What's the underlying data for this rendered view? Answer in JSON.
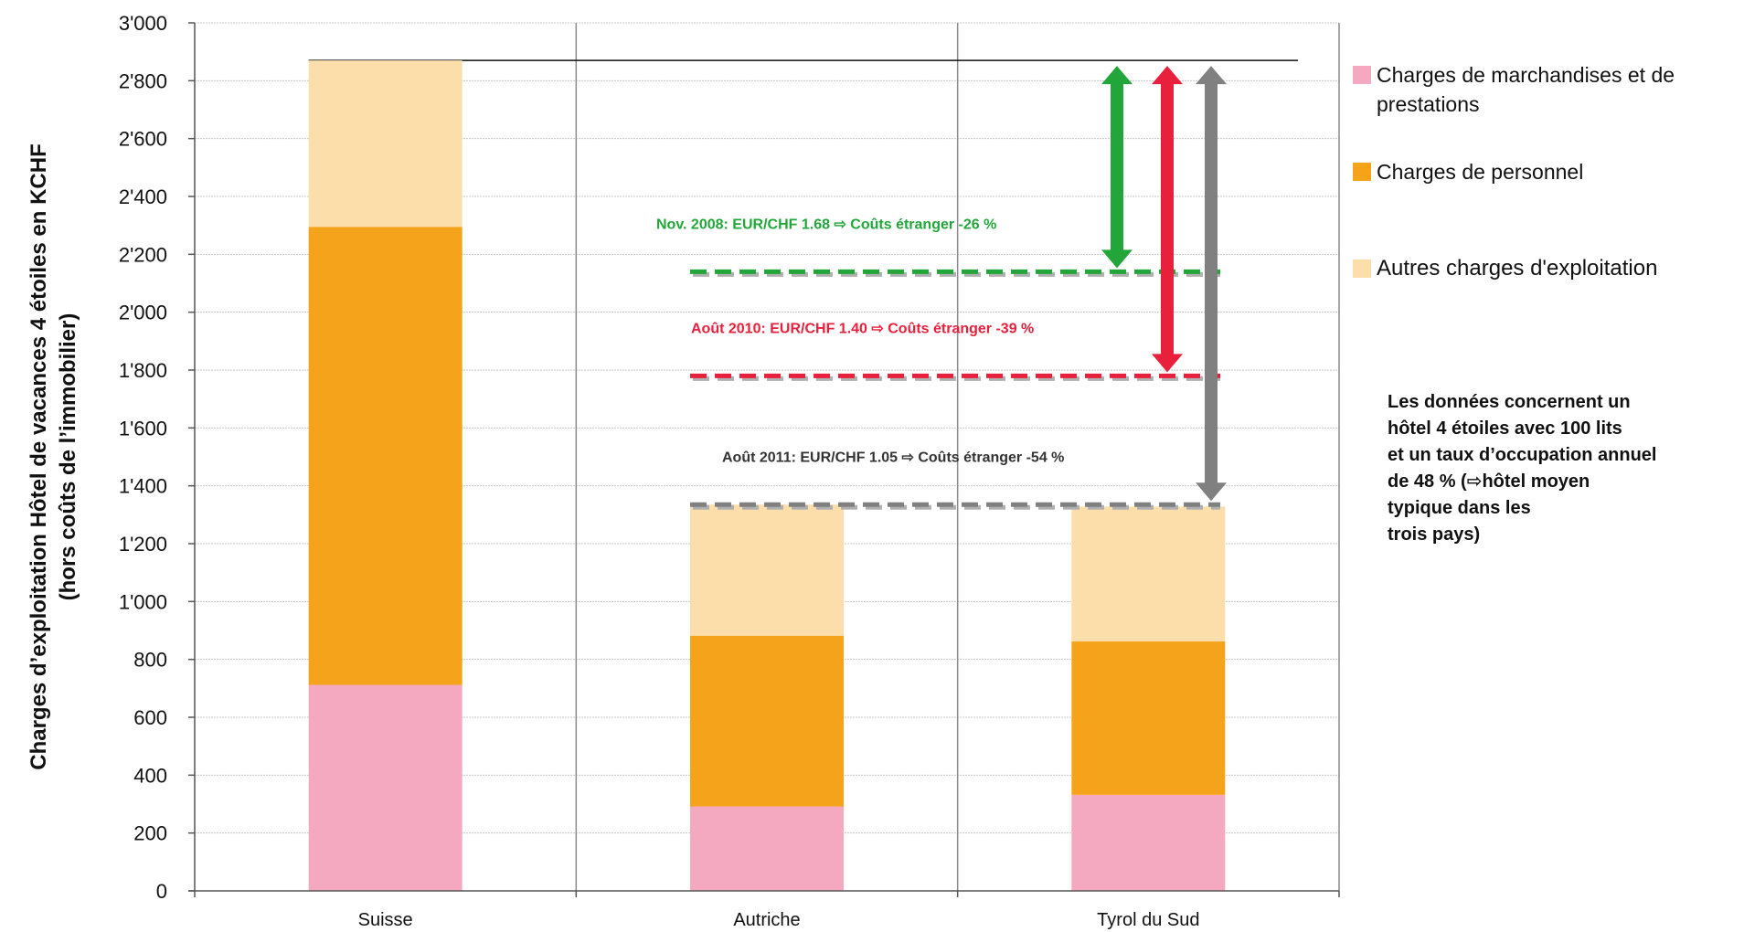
{
  "chart_data": {
    "type": "bar",
    "stacked": true,
    "categories": [
      "Suisse",
      "Autriche",
      "Tyrol du Sud"
    ],
    "series": [
      {
        "name": "Charges de marchandises et de prestations",
        "values": [
          712,
          292,
          332
        ],
        "color": "#f4a9c0"
      },
      {
        "name": "Charges de personnel",
        "values": [
          1583,
          590,
          530
        ],
        "color": "#f5a31a"
      },
      {
        "name": "Autres charges d'exploitation",
        "values": [
          575,
          453,
          466
        ],
        "color": "#fbdeaa"
      }
    ],
    "ylabel_line1": "Charges d’exploitation  Hôtel de vacances 4 étoiles  en KCHF",
    "ylabel_line2": "(hors coûts de l’immobilier)",
    "ylim": [
      0,
      3000
    ],
    "yticks": [
      0,
      200,
      400,
      600,
      800,
      1000,
      1200,
      1400,
      1600,
      1800,
      2000,
      2200,
      2400,
      2600,
      2800,
      3000
    ],
    "ytick_labels": [
      "0",
      "200",
      "400",
      "600",
      "800",
      "1'000",
      "1'200",
      "1'400",
      "1'600",
      "1'800",
      "2'000",
      "2'200",
      "2'400",
      "2'600",
      "2'800",
      "3'000"
    ],
    "grid": true,
    "legend_position": "right",
    "reference_line": 2870,
    "annotations": [
      {
        "text": "Nov. 2008: EUR/CHF 1.68 ⇨ Coûts étranger -26 %",
        "level": 2140,
        "color": "#22a63a"
      },
      {
        "text": "Août 2010: EUR/CHF 1.40 ⇨ Coûts étranger -39 %",
        "level": 1780,
        "color": "#e8203c"
      },
      {
        "text": "Août 2011: EUR/CHF 1.05 ⇨ Coûts étranger -54 %",
        "level": 1335,
        "color": "#808080"
      }
    ]
  },
  "note_lines": [
    "Les données concernent un",
    "hôtel 4 étoiles avec 100 lits",
    "et un taux d’occupation annuel",
    "de 48 % (⇨hôtel moyen",
    "typique dans les",
    "trois pays)"
  ]
}
